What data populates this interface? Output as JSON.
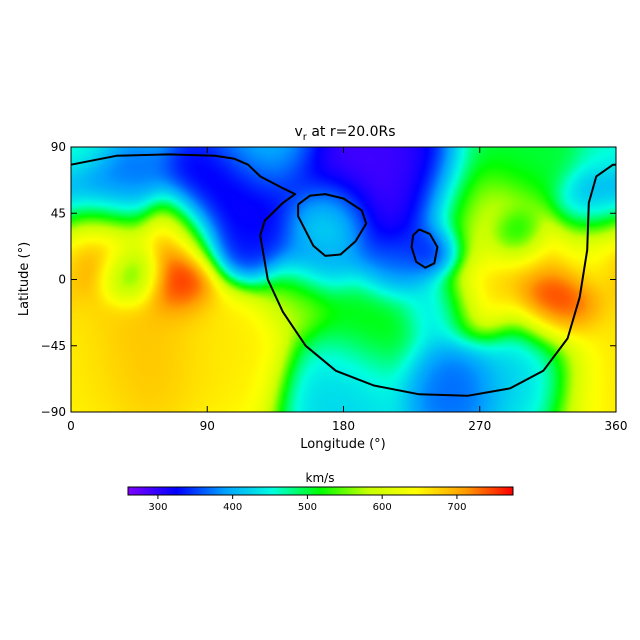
{
  "chart_data": {
    "type": "heatmap",
    "title": "v",
    "title_subscript": "r",
    "title_suffix": " at r=20.0Rs",
    "xlabel": "Longitude (°)",
    "ylabel": "Latitude (°)",
    "xlim": [
      0,
      360
    ],
    "ylim": [
      -90,
      90
    ],
    "xticks": [
      "0",
      "90",
      "180",
      "270",
      "360"
    ],
    "yticks": [
      "90",
      "45",
      "0",
      "−45",
      "−90"
    ],
    "colorbar": {
      "label": "km/s",
      "range": [
        260,
        775
      ],
      "ticks": [
        "300",
        "400",
        "500",
        "600",
        "700"
      ],
      "colormap": [
        "#7f00ff",
        "#0000ff",
        "#00a0ff",
        "#00ffe0",
        "#00ff00",
        "#c8ff00",
        "#ffff00",
        "#ffa000",
        "#ff0000"
      ]
    },
    "contour": {
      "color": "#000000",
      "main_boundary": [
        [
          0,
          78
        ],
        [
          30,
          84
        ],
        [
          65,
          85
        ],
        [
          95,
          84
        ],
        [
          108,
          82
        ],
        [
          117,
          78
        ],
        [
          125,
          70
        ],
        [
          140,
          62
        ],
        [
          148,
          58
        ],
        [
          140,
          52
        ],
        [
          128,
          40
        ],
        [
          125,
          30
        ],
        [
          130,
          0
        ],
        [
          140,
          -22
        ],
        [
          155,
          -45
        ],
        [
          175,
          -62
        ],
        [
          200,
          -72
        ],
        [
          230,
          -78
        ],
        [
          262,
          -79
        ],
        [
          290,
          -74
        ],
        [
          312,
          -62
        ],
        [
          328,
          -40
        ],
        [
          336,
          -12
        ],
        [
          341,
          20
        ],
        [
          342,
          52
        ],
        [
          347,
          70
        ],
        [
          358,
          78
        ],
        [
          360,
          78
        ]
      ],
      "loop_a": [
        [
          150,
          51
        ],
        [
          158,
          57
        ],
        [
          168,
          58
        ],
        [
          180,
          55
        ],
        [
          192,
          47
        ],
        [
          195,
          38
        ],
        [
          188,
          26
        ],
        [
          178,
          17
        ],
        [
          168,
          16
        ],
        [
          160,
          23
        ],
        [
          155,
          33
        ],
        [
          150,
          43
        ],
        [
          150,
          51
        ]
      ],
      "loop_b": [
        [
          230,
          34
        ],
        [
          237,
          31
        ],
        [
          242,
          22
        ],
        [
          240,
          11
        ],
        [
          234,
          8
        ],
        [
          228,
          12
        ],
        [
          225,
          22
        ],
        [
          226,
          30
        ],
        [
          230,
          34
        ]
      ]
    },
    "blobs": [
      {
        "lon": 0,
        "lat": 90,
        "v": 460,
        "s": 14
      },
      {
        "lon": 0,
        "lat": -55,
        "v": 660,
        "s": 24
      },
      {
        "lon": 50,
        "lat": -45,
        "v": 690,
        "s": 24
      },
      {
        "lon": 100,
        "lat": -45,
        "v": 660,
        "s": 24
      },
      {
        "lon": 20,
        "lat": 22,
        "v": 760,
        "s": 18
      },
      {
        "lon": 40,
        "lat": 5,
        "v": 470,
        "s": 12
      },
      {
        "lon": 25,
        "lat": 55,
        "v": 360,
        "s": 20
      },
      {
        "lon": 70,
        "lat": 30,
        "v": 740,
        "s": 14
      },
      {
        "lon": 70,
        "lat": 0,
        "v": 780,
        "s": 14
      },
      {
        "lon": 90,
        "lat": 45,
        "v": 330,
        "s": 16
      },
      {
        "lon": 110,
        "lat": 60,
        "v": 300,
        "s": 22
      },
      {
        "lon": 120,
        "lat": 25,
        "v": 330,
        "s": 16
      },
      {
        "lon": 175,
        "lat": 60,
        "v": 280,
        "s": 26
      },
      {
        "lon": 220,
        "lat": 55,
        "v": 290,
        "s": 26
      },
      {
        "lon": 170,
        "lat": 40,
        "v": 520,
        "s": 16
      },
      {
        "lon": 160,
        "lat": 10,
        "v": 370,
        "s": 14
      },
      {
        "lon": 150,
        "lat": -10,
        "v": 580,
        "s": 14
      },
      {
        "lon": 200,
        "lat": -30,
        "v": 520,
        "s": 24
      },
      {
        "lon": 215,
        "lat": 10,
        "v": 350,
        "s": 14
      },
      {
        "lon": 240,
        "lat": 20,
        "v": 300,
        "s": 10
      },
      {
        "lon": 270,
        "lat": 40,
        "v": 620,
        "s": 22
      },
      {
        "lon": 270,
        "lat": -15,
        "v": 690,
        "s": 16
      },
      {
        "lon": 245,
        "lat": -20,
        "v": 400,
        "s": 14
      },
      {
        "lon": 300,
        "lat": 20,
        "v": 690,
        "s": 14
      },
      {
        "lon": 295,
        "lat": 30,
        "v": 390,
        "s": 10
      },
      {
        "lon": 320,
        "lat": -18,
        "v": 780,
        "s": 16
      },
      {
        "lon": 345,
        "lat": 20,
        "v": 640,
        "s": 18
      },
      {
        "lon": 345,
        "lat": 50,
        "v": 380,
        "s": 14
      },
      {
        "lon": 300,
        "lat": -55,
        "v": 420,
        "s": 20
      },
      {
        "lon": 250,
        "lat": -65,
        "v": 360,
        "s": 18
      },
      {
        "lon": 180,
        "lat": -70,
        "v": 420,
        "s": 20
      },
      {
        "lon": 130,
        "lat": 85,
        "v": 430,
        "s": 18
      },
      {
        "lon": 300,
        "lat": 85,
        "v": 500,
        "s": 22
      }
    ],
    "background_v": 560
  }
}
